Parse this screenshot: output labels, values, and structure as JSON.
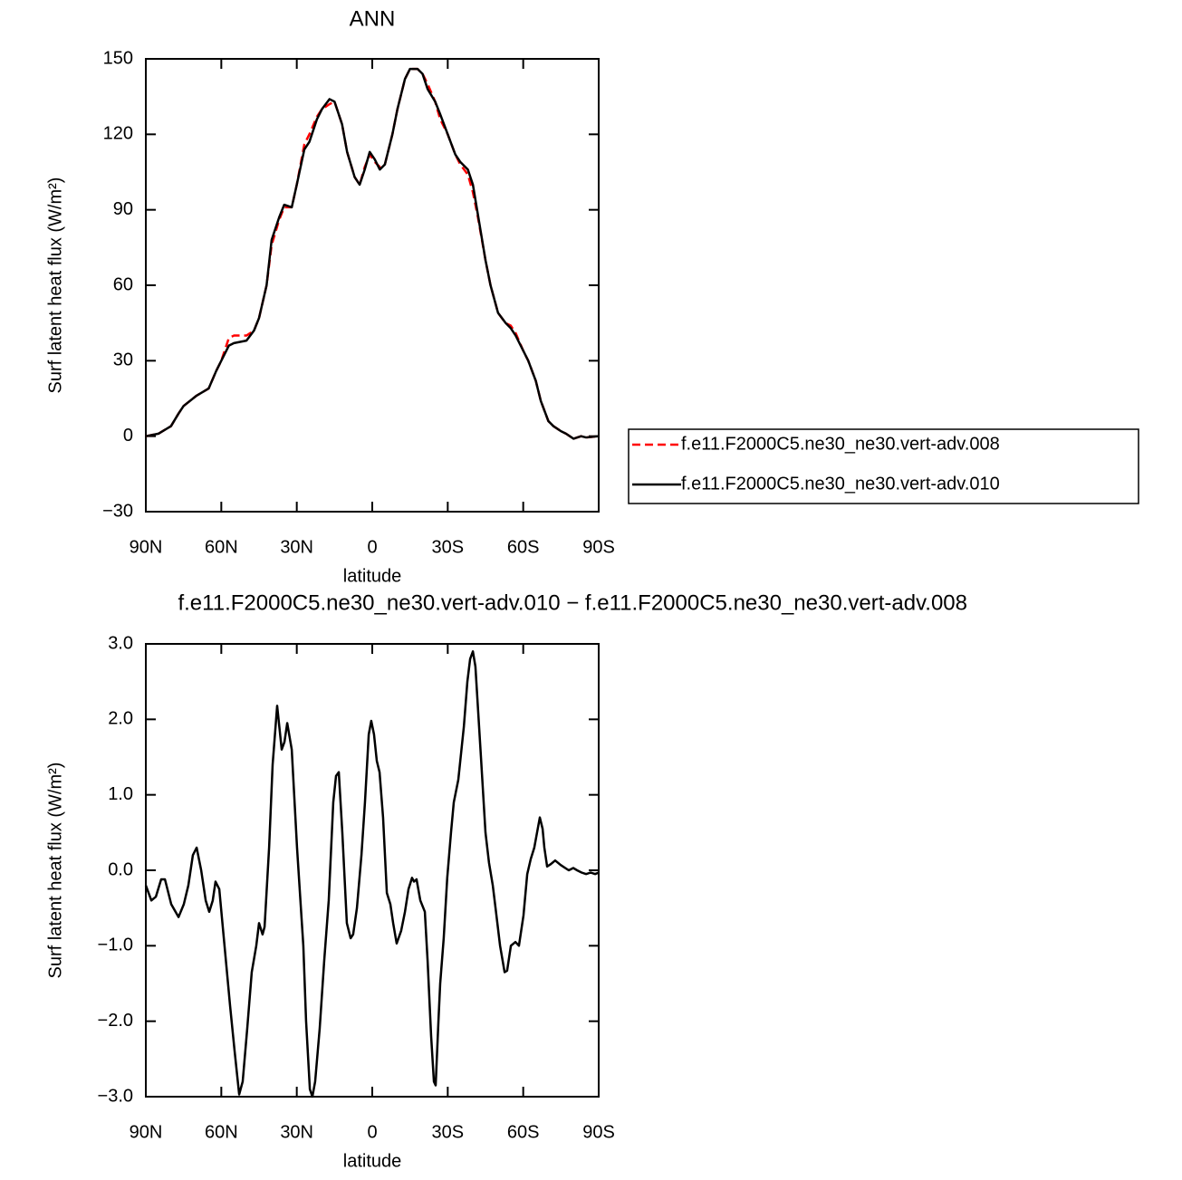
{
  "chart_data": [
    {
      "type": "line",
      "title": "ANN",
      "xlabel": "latitude",
      "ylabel": "Surf latent heat flux (W/m²)",
      "xlim": [
        90,
        -90
      ],
      "xticks": [
        {
          "value": 90,
          "label": "90N"
        },
        {
          "value": 60,
          "label": "60N"
        },
        {
          "value": 30,
          "label": "30N"
        },
        0,
        {
          "value": -30,
          "label": "30S"
        },
        {
          "value": -60,
          "label": "60S"
        },
        {
          "value": -90,
          "label": "90S"
        }
      ],
      "ylim": [
        -30,
        150
      ],
      "yticks": [
        {
          "value": -30,
          "label": "−30"
        },
        0,
        30,
        60,
        90,
        120,
        150
      ],
      "legend": "right",
      "x": [
        90,
        85,
        80,
        77,
        75,
        70,
        65,
        62,
        60,
        57,
        55,
        50,
        47,
        45,
        42,
        40,
        37,
        35,
        32,
        30,
        27,
        25,
        22,
        20,
        17,
        15,
        12,
        10,
        7,
        5,
        3,
        1,
        -1,
        -3,
        -5,
        -8,
        -10,
        -13,
        -15,
        -18,
        -20,
        -22,
        -25,
        -27,
        -30,
        -33,
        -35,
        -38,
        -40,
        -42,
        -45,
        -47,
        -50,
        -53,
        -55,
        -57,
        -60,
        -62,
        -65,
        -67,
        -70,
        -72,
        -75,
        -77,
        -80,
        -83,
        -85,
        -90
      ],
      "series": [
        {
          "name": "f.e11.F2000C5.ne30_ne30.vert-adv.008",
          "color": "#ff0000",
          "dash": "dashed",
          "values": [
            0,
            1,
            4,
            9,
            12,
            16,
            19,
            26,
            30,
            39,
            40,
            40,
            42,
            47,
            60,
            76,
            86,
            91,
            91,
            100,
            116,
            120,
            127,
            130,
            132,
            133,
            124,
            113,
            103,
            100,
            107,
            112,
            109,
            107,
            108,
            120,
            130,
            142,
            146,
            146,
            144,
            140,
            133,
            126,
            120,
            112,
            108,
            104,
            97,
            87,
            70,
            60,
            49,
            45,
            44,
            41,
            34,
            30,
            22,
            14,
            6,
            4,
            2,
            1,
            -1,
            0,
            -0.5,
            0
          ]
        },
        {
          "name": "f.e11.F2000C5.ne30_ne30.vert-adv.010",
          "color": "#000000",
          "dash": "solid",
          "values": [
            0,
            1,
            4,
            9,
            12,
            16,
            19,
            26,
            30,
            36,
            37,
            38,
            42,
            47,
            60,
            78,
            87,
            92,
            91,
            100,
            114,
            117,
            126,
            130,
            134,
            133,
            124,
            113,
            103,
            100,
            106,
            113,
            110,
            106,
            108,
            120,
            130,
            142,
            146,
            146,
            144,
            138,
            133,
            128,
            120,
            112,
            109,
            106,
            100,
            88,
            70,
            60,
            49,
            45,
            43,
            40,
            34,
            30,
            22,
            14,
            6,
            4,
            2,
            1,
            -1,
            0,
            -0.5,
            0
          ]
        }
      ]
    },
    {
      "type": "line",
      "title": "f.e11.F2000C5.ne30_ne30.vert-adv.010 − f.e11.F2000C5.ne30_ne30.vert-adv.008",
      "xlabel": "latitude",
      "ylabel": "Surf latent heat flux (W/m²)",
      "xlim": [
        90,
        -90
      ],
      "xticks": [
        {
          "value": 90,
          "label": "90N"
        },
        {
          "value": 60,
          "label": "60N"
        },
        {
          "value": 30,
          "label": "30N"
        },
        0,
        {
          "value": -30,
          "label": "30S"
        },
        {
          "value": -60,
          "label": "60S"
        },
        {
          "value": -90,
          "label": "90S"
        }
      ],
      "ylim": [
        -3,
        3
      ],
      "yticks": [
        {
          "value": -3,
          "label": "−3.0"
        },
        {
          "value": -2,
          "label": "−2.0"
        },
        {
          "value": -1,
          "label": "−1.0"
        },
        {
          "value": 0,
          "label": "0.0"
        },
        {
          "value": 1,
          "label": "1.0"
        },
        {
          "value": 2,
          "label": "2.0"
        },
        {
          "value": 3,
          "label": "3.0"
        }
      ],
      "x": [
        90,
        87.8,
        86.0,
        83.9,
        82.4,
        79.9,
        77.0,
        74.9,
        73.1,
        71.3,
        69.8,
        68.0,
        66.2,
        64.8,
        63.4,
        62.3,
        60.8,
        59.0,
        56.5,
        54.7,
        52.9,
        51.5,
        49.7,
        47.9,
        46.1,
        45.0,
        43.6,
        42.8,
        41.0,
        39.6,
        37.8,
        36.0,
        34.9,
        33.8,
        32.0,
        29.9,
        27.4,
        26.3,
        24.8,
        23.8,
        22.7,
        20.9,
        19.1,
        17.3,
        15.5,
        14.4,
        13.3,
        11.9,
        10.1,
        8.6,
        7.6,
        6.1,
        4.3,
        2.9,
        1.4,
        0.4,
        -0.7,
        -1.8,
        -2.9,
        -4.3,
        -5.8,
        -7.2,
        -8.3,
        -9.7,
        -11.5,
        -13.0,
        -14.4,
        -15.8,
        -16.6,
        -17.6,
        -19.1,
        -20.9,
        -22.0,
        -23.4,
        -24.5,
        -25.2,
        -26.3,
        -27.0,
        -28.4,
        -29.8,
        -31.3,
        -32.4,
        -34.2,
        -36.4,
        -37.8,
        -38.9,
        -40.0,
        -41.0,
        -43.2,
        -45.0,
        -46.4,
        -47.9,
        -49.0,
        -50.8,
        -52.6,
        -53.6,
        -55.1,
        -56.9,
        -58.3,
        -60.1,
        -61.6,
        -63.0,
        -64.4,
        -65.5,
        -66.6,
        -67.7,
        -68.4,
        -69.5,
        -70.9,
        -72.7,
        -74.9,
        -76.7,
        -78.1,
        -79.9,
        -81.4,
        -83.2,
        -85.0,
        -86.8,
        -88.6,
        -90
      ],
      "series": [
        {
          "color": "#000000",
          "dash": "solid",
          "values": [
            -0.2,
            -0.4,
            -0.35,
            -0.12,
            -0.12,
            -0.45,
            -0.62,
            -0.45,
            -0.2,
            0.2,
            0.3,
            0,
            -0.4,
            -0.55,
            -0.4,
            -0.15,
            -0.25,
            -0.9,
            -1.8,
            -2.4,
            -2.97,
            -2.8,
            -2.1,
            -1.35,
            -1.0,
            -0.7,
            -0.85,
            -0.75,
            0.3,
            1.4,
            2.18,
            1.6,
            1.7,
            1.95,
            1.6,
            0.3,
            -1.0,
            -2.0,
            -2.9,
            -3.0,
            -2.8,
            -2.1,
            -1.2,
            -0.4,
            0.9,
            1.25,
            1.3,
            0.5,
            -0.7,
            -0.9,
            -0.85,
            -0.5,
            0.2,
            0.9,
            1.8,
            1.98,
            1.8,
            1.45,
            1.3,
            0.7,
            -0.3,
            -0.45,
            -0.7,
            -0.97,
            -0.8,
            -0.55,
            -0.25,
            -0.1,
            -0.15,
            -0.12,
            -0.4,
            -0.55,
            -1.2,
            -2.2,
            -2.8,
            -2.85,
            -2.0,
            -1.5,
            -0.9,
            -0.1,
            0.5,
            0.9,
            1.2,
            1.9,
            2.5,
            2.8,
            2.9,
            2.7,
            1.5,
            0.5,
            0.1,
            -0.2,
            -0.5,
            -1.0,
            -1.35,
            -1.33,
            -1.0,
            -0.95,
            -1.0,
            -0.6,
            -0.05,
            0.15,
            0.3,
            0.5,
            0.7,
            0.55,
            0.3,
            0.05,
            0.08,
            0.13,
            0.07,
            0.03,
            0,
            0.03,
            0,
            -0.03,
            -0.05,
            -0.03,
            -0.05,
            -0.03
          ]
        }
      ]
    }
  ]
}
